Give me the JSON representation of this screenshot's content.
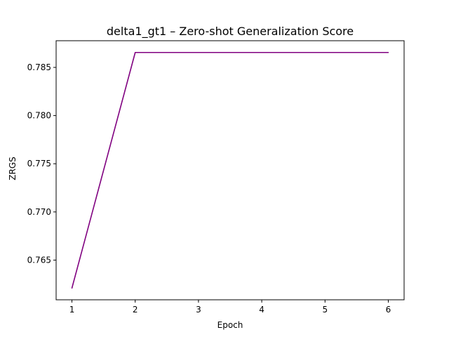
{
  "chart_data": {
    "type": "line",
    "title": "delta1_gt1 – Zero-shot Generalization Score",
    "xlabel": "Epoch",
    "ylabel": "ZRGS",
    "x": [
      1,
      2,
      3,
      4,
      5,
      6
    ],
    "series": [
      {
        "values": [
          0.7621,
          0.78655,
          0.78655,
          0.78655,
          0.78655,
          0.78655
        ],
        "color": "#800080"
      }
    ],
    "xlim": [
      0.75,
      6.25
    ],
    "ylim": [
      0.76088,
      0.78777
    ],
    "xticks": [
      1,
      2,
      3,
      4,
      5,
      6
    ],
    "yticks": [
      0.765,
      0.77,
      0.775,
      0.78,
      0.785
    ],
    "ytick_labels": [
      "0.765",
      "0.770",
      "0.775",
      "0.780",
      "0.785"
    ],
    "grid": false,
    "legend": "none"
  }
}
